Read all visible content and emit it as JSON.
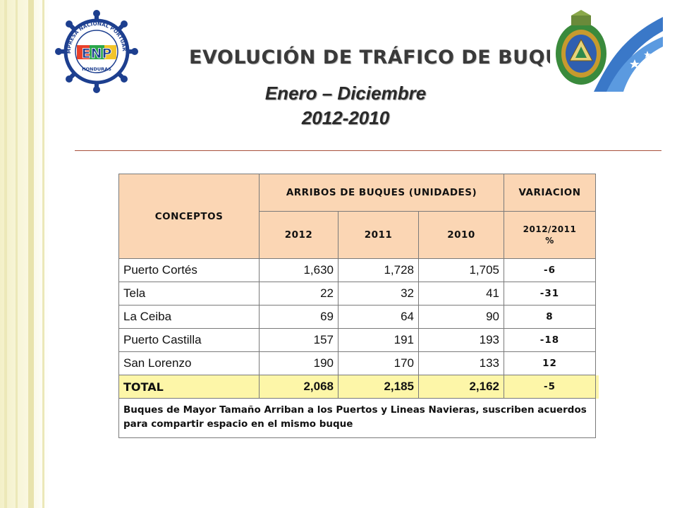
{
  "header": {
    "title": "EVOLUCIÓN DE TRÁFICO DE BUQUES",
    "subtitle": "Enero – Diciembre",
    "years": "2012-2010",
    "logo_text": "ENP",
    "logo_ring_text": "EMPRESA NACIONAL PORTUARIA",
    "logo_bottom_text": "HONDURAS"
  },
  "table": {
    "col_conceptos": "CONCEPTOS",
    "col_arribos": "ARRIBOS DE BUQUES (UNIDADES)",
    "col_variacion": "VARIACION",
    "years": [
      "2012",
      "2011",
      "2010"
    ],
    "variation_label_1": "2012/2011",
    "variation_label_2": "%",
    "rows": [
      {
        "name": "Puerto Cortés",
        "v2012": "1,630",
        "v2011": "1,728",
        "v2010": "1,705",
        "var": "-6"
      },
      {
        "name": "Tela",
        "v2012": "22",
        "v2011": "32",
        "v2010": "41",
        "var": "-31"
      },
      {
        "name": "La Ceiba",
        "v2012": "69",
        "v2011": "64",
        "v2010": "90",
        "var": "8"
      },
      {
        "name": "Puerto Castilla",
        "v2012": "157",
        "v2011": "191",
        "v2010": "193",
        "var": "-18"
      },
      {
        "name": "San Lorenzo",
        "v2012": "190",
        "v2011": "170",
        "v2010": "133",
        "var": "12"
      }
    ],
    "total": {
      "name": "TOTAL",
      "v2012": "2,068",
      "v2011": "2,185",
      "v2010": "2,162",
      "var": "-5"
    },
    "note": "Buques de Mayor Tamaño Arriban a los Puertos y Lineas Navieras, suscriben acuerdos para compartir espacio en el mismo buque"
  },
  "colors": {
    "header_bg": "#fbd6b4",
    "total_bg": "#fdf6a8",
    "negative": "#c0181e"
  }
}
